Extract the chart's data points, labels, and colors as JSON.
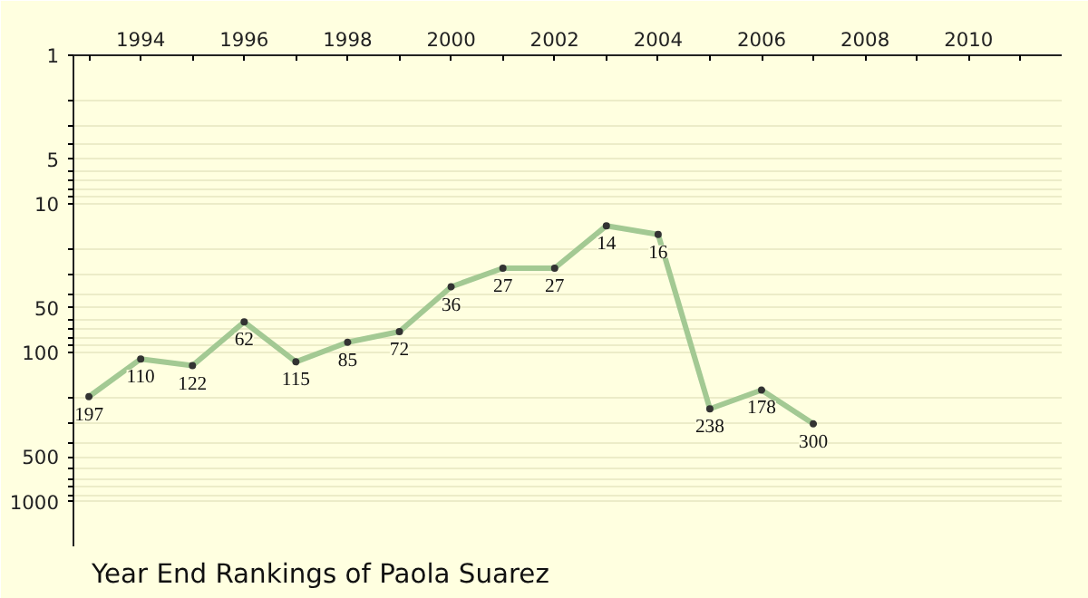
{
  "chart_data": {
    "type": "line",
    "title": "Year End Rankings of  Paola Suarez",
    "x": [
      1993,
      1994,
      1995,
      1996,
      1997,
      1998,
      1999,
      2000,
      2001,
      2002,
      2003,
      2004,
      2005,
      2006,
      2007
    ],
    "series": [
      {
        "color": "#a3c993",
        "values": [
          197,
          110,
          122,
          62,
          115,
          85,
          72,
          36,
          27,
          27,
          14,
          16,
          238,
          178,
          300
        ]
      }
    ],
    "data_labels": true,
    "marker": "circle",
    "line_style": "solid",
    "log": "y",
    "grid": "y",
    "xlim": [
      1992.7,
      2011.8
    ],
    "xticks": [
      {
        "value": 1993,
        "label": null
      },
      1994,
      {
        "value": 1995,
        "label": null
      },
      1996,
      {
        "value": 1997,
        "label": null
      },
      1998,
      {
        "value": 1999,
        "label": null
      },
      2000,
      {
        "value": 2001,
        "label": null
      },
      2002,
      {
        "value": 2003,
        "label": null
      },
      2004,
      {
        "value": 2005,
        "label": null
      },
      2006,
      {
        "value": 2007,
        "label": null
      },
      2008,
      {
        "value": 2009,
        "label": null
      },
      2010,
      {
        "value": 2011,
        "label": null
      }
    ],
    "ylim": [
      2000,
      1
    ],
    "yticks": [
      1,
      {
        "value": 2,
        "label": null
      },
      {
        "value": 3,
        "label": null
      },
      {
        "value": 4,
        "label": null
      },
      5,
      {
        "value": 6,
        "label": null
      },
      {
        "value": 7,
        "label": null
      },
      {
        "value": 8,
        "label": null
      },
      {
        "value": 9,
        "label": null
      },
      10,
      {
        "value": 20,
        "label": null
      },
      {
        "value": 30,
        "label": null
      },
      {
        "value": 40,
        "label": null
      },
      50,
      {
        "value": 60,
        "label": null
      },
      {
        "value": 70,
        "label": null
      },
      {
        "value": 80,
        "label": null
      },
      {
        "value": 90,
        "label": null
      },
      100,
      {
        "value": 200,
        "label": null
      },
      {
        "value": 300,
        "label": null
      },
      {
        "value": 400,
        "label": null
      },
      500,
      {
        "value": 600,
        "label": null
      },
      {
        "value": 700,
        "label": null
      },
      {
        "value": 800,
        "label": null
      },
      {
        "value": 900,
        "label": null
      },
      1000
    ]
  }
}
